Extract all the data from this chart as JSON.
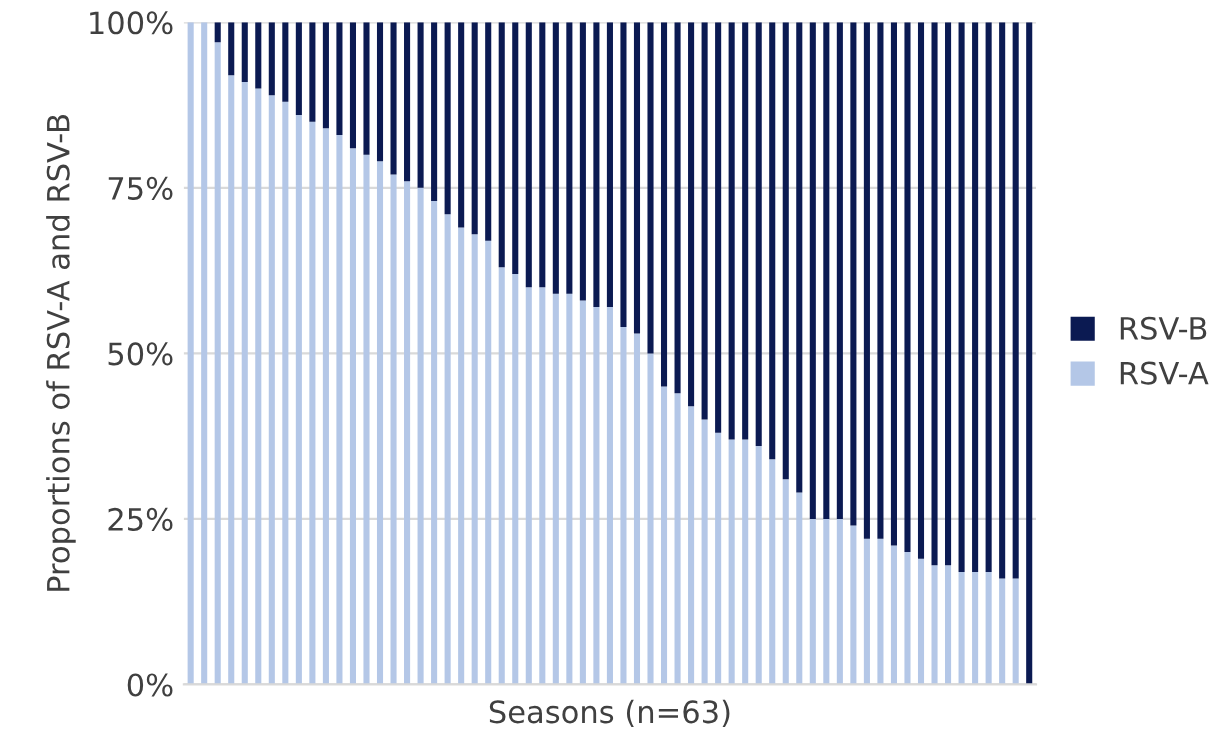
{
  "chart_data": {
    "type": "bar",
    "stacked": true,
    "xlabel": "Seasons (n=63)",
    "ylabel": "Proportions of RSV-A and RSV-B",
    "categories": [
      null,
      null,
      null,
      null,
      null,
      null,
      null,
      null,
      null,
      null,
      null,
      null,
      null,
      null,
      null,
      null,
      null,
      null,
      null,
      null,
      null,
      null,
      null,
      null,
      null,
      null,
      null,
      null,
      null,
      null,
      null,
      null,
      null,
      null,
      null,
      null,
      null,
      null,
      null,
      null,
      null,
      null,
      null,
      null,
      null,
      null,
      null,
      null,
      null,
      null,
      null,
      null,
      null,
      null,
      null,
      null,
      null,
      null,
      null,
      null,
      null,
      null,
      null
    ],
    "series": [
      {
        "name": "RSV-A",
        "color": "#b4c7e7",
        "values": [
          100,
          100,
          97,
          92,
          91,
          90,
          89,
          88,
          86,
          85,
          84,
          83,
          81,
          80,
          79,
          77,
          76,
          75,
          73,
          71,
          69,
          68,
          67,
          63,
          62,
          60,
          60,
          59,
          59,
          58,
          57,
          57,
          54,
          53,
          50,
          45,
          44,
          42,
          40,
          38,
          37,
          37,
          36,
          34,
          31,
          29,
          25,
          25,
          25,
          24,
          22,
          22,
          21,
          20,
          19,
          18,
          18,
          17,
          17,
          17,
          16,
          16,
          0
        ]
      },
      {
        "name": "RSV-B",
        "color": "#0b1a52",
        "values": [
          0,
          0,
          3,
          8,
          9,
          10,
          11,
          12,
          14,
          15,
          16,
          17,
          19,
          20,
          21,
          23,
          24,
          25,
          27,
          29,
          31,
          32,
          33,
          37,
          38,
          40,
          40,
          41,
          41,
          42,
          43,
          43,
          46,
          47,
          50,
          55,
          56,
          58,
          60,
          62,
          63,
          63,
          64,
          66,
          69,
          71,
          75,
          75,
          75,
          76,
          78,
          78,
          79,
          80,
          81,
          82,
          82,
          83,
          83,
          83,
          84,
          84,
          100
        ]
      }
    ],
    "ylim": [
      0,
      100
    ],
    "yticks": [
      {
        "value": 0,
        "label": "0%"
      },
      {
        "value": 25,
        "label": "25%"
      },
      {
        "value": 50,
        "label": "50%"
      },
      {
        "value": 75,
        "label": "75%"
      },
      {
        "value": 100,
        "label": "100%"
      }
    ],
    "grid": "y",
    "legend": "right"
  }
}
